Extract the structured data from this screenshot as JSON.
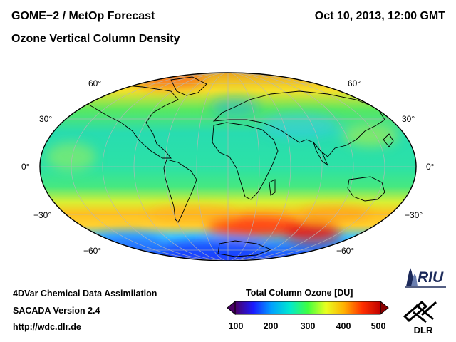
{
  "header": {
    "title": "GOME−2 / MetOp Forecast",
    "subtitle": "Ozone Vertical Column Density",
    "datetime": "Oct 10, 2013, 12:00 GMT"
  },
  "map": {
    "projection": "Hammer/Aitoff world map",
    "lat_labels": {
      "n60": "60°",
      "n30": "30°",
      "eq": "0°",
      "s30": "−30°",
      "s60": "−60°"
    }
  },
  "footer": {
    "line1": "4DVar Chemical Data Assimilation",
    "line2": "SACADA Version 2.4",
    "line3": "http://wdc.dlr.de"
  },
  "colorbar": {
    "title": "Total Column Ozone [DU]",
    "min": 100,
    "max": 500,
    "ticks": [
      "100",
      "200",
      "300",
      "400",
      "500"
    ],
    "colors": [
      "#4b0066",
      "#1a1aff",
      "#00a0ff",
      "#00e8d0",
      "#40ff40",
      "#e8ff20",
      "#ffb000",
      "#ff3000",
      "#c00000"
    ]
  },
  "logos": {
    "riu": "RIU",
    "dlr": "DLR"
  }
}
